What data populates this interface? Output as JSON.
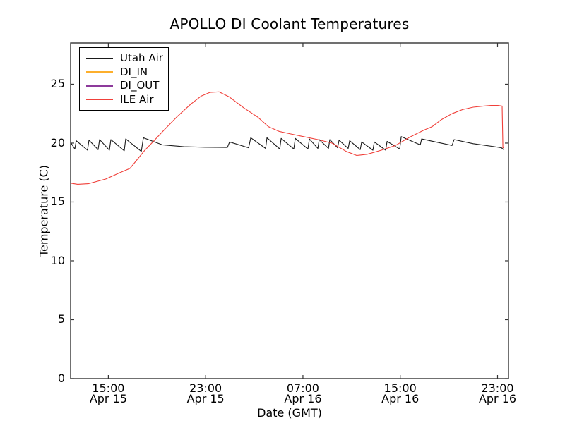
{
  "chart_data": {
    "type": "line",
    "title": "APOLLO DI Coolant Temperatures",
    "xlabel": "Date (GMT)",
    "ylabel": "Temperature (C)",
    "x_unit_hint": "hours after Apr 15 12:00 GMT",
    "xlim": [
      0,
      36
    ],
    "ylim": [
      0,
      28.5
    ],
    "grid": false,
    "yticks": [
      0,
      5,
      10,
      15,
      20,
      25
    ],
    "xticks": [
      {
        "t": 3.1,
        "time": "15:00",
        "date": "Apr 15"
      },
      {
        "t": 11.1,
        "time": "23:00",
        "date": "Apr 15"
      },
      {
        "t": 19.1,
        "time": "07:00",
        "date": "Apr 16"
      },
      {
        "t": 27.1,
        "time": "15:00",
        "date": "Apr 16"
      },
      {
        "t": 35.1,
        "time": "23:00",
        "date": "Apr 16"
      }
    ],
    "legend": {
      "position": "upper left",
      "entries": [
        {
          "label": "Utah Air",
          "color": "#1a1a1a"
        },
        {
          "label": "DI_IN",
          "color": "#fdaf2c"
        },
        {
          "label": "DI_OUT",
          "color": "#8d3a9b"
        },
        {
          "label": "ILE Air",
          "color": "#f0403a"
        }
      ]
    },
    "series": [
      {
        "name": "Utah Air",
        "color": "#1a1a1a",
        "points": [
          [
            0,
            20.05
          ],
          [
            0.35,
            19.5
          ],
          [
            0.46,
            20.2
          ],
          [
            1.39,
            19.4
          ],
          [
            1.51,
            20.25
          ],
          [
            2.26,
            19.45
          ],
          [
            2.38,
            20.3
          ],
          [
            3.19,
            19.4
          ],
          [
            3.31,
            20.3
          ],
          [
            4.41,
            19.35
          ],
          [
            4.53,
            20.35
          ],
          [
            5.81,
            19.3
          ],
          [
            5.98,
            20.45
          ],
          [
            7.55,
            19.85
          ],
          [
            9.29,
            19.7
          ],
          [
            11.03,
            19.65
          ],
          [
            12.89,
            19.63
          ],
          [
            13.07,
            20.1
          ],
          [
            14.63,
            19.6
          ],
          [
            14.81,
            20.45
          ],
          [
            16.03,
            19.55
          ],
          [
            16.14,
            20.45
          ],
          [
            17.19,
            19.5
          ],
          [
            17.31,
            20.4
          ],
          [
            18.35,
            19.5
          ],
          [
            18.47,
            20.4
          ],
          [
            19.51,
            19.5
          ],
          [
            19.63,
            20.35
          ],
          [
            20.33,
            19.55
          ],
          [
            20.44,
            20.3
          ],
          [
            21.2,
            19.55
          ],
          [
            21.31,
            20.3
          ],
          [
            21.95,
            19.6
          ],
          [
            22.07,
            20.25
          ],
          [
            22.82,
            19.55
          ],
          [
            22.94,
            20.2
          ],
          [
            23.81,
            19.45
          ],
          [
            23.93,
            20.1
          ],
          [
            24.85,
            19.4
          ],
          [
            24.97,
            20.1
          ],
          [
            25.9,
            19.4
          ],
          [
            26.02,
            20.15
          ],
          [
            27.06,
            19.5
          ],
          [
            27.18,
            20.55
          ],
          [
            28.75,
            19.85
          ],
          [
            28.86,
            20.35
          ],
          [
            31.36,
            19.8
          ],
          [
            31.53,
            20.3
          ],
          [
            33.1,
            19.95
          ],
          [
            34.84,
            19.7
          ],
          [
            35.42,
            19.6
          ],
          [
            35.6,
            19.45
          ]
        ]
      },
      {
        "name": "DI_IN",
        "color": "#fdaf2c",
        "points": []
      },
      {
        "name": "DI_OUT",
        "color": "#8d3a9b",
        "points": []
      },
      {
        "name": "ILE Air",
        "color": "#f0403a",
        "points": [
          [
            0,
            16.6
          ],
          [
            0.58,
            16.5
          ],
          [
            1.45,
            16.55
          ],
          [
            2.9,
            16.95
          ],
          [
            4.07,
            17.5
          ],
          [
            4.88,
            17.85
          ],
          [
            6.1,
            19.4
          ],
          [
            6.39,
            19.7
          ],
          [
            7.67,
            21.1
          ],
          [
            8.71,
            22.2
          ],
          [
            9.87,
            23.3
          ],
          [
            10.74,
            24.0
          ],
          [
            11.44,
            24.3
          ],
          [
            12.2,
            24.35
          ],
          [
            13.07,
            23.9
          ],
          [
            14.23,
            23.0
          ],
          [
            15.39,
            22.2
          ],
          [
            16.26,
            21.4
          ],
          [
            17.13,
            21.0
          ],
          [
            18.0,
            20.8
          ],
          [
            19.16,
            20.55
          ],
          [
            20.33,
            20.3
          ],
          [
            21.49,
            20.0
          ],
          [
            22.65,
            19.3
          ],
          [
            23.52,
            18.95
          ],
          [
            24.39,
            19.05
          ],
          [
            25.55,
            19.4
          ],
          [
            26.71,
            19.8
          ],
          [
            27.87,
            20.5
          ],
          [
            29.04,
            21.1
          ],
          [
            29.73,
            21.4
          ],
          [
            30.49,
            22.0
          ],
          [
            31.36,
            22.5
          ],
          [
            32.23,
            22.85
          ],
          [
            33.1,
            23.05
          ],
          [
            33.97,
            23.15
          ],
          [
            34.55,
            23.2
          ],
          [
            35.13,
            23.2
          ],
          [
            35.48,
            23.15
          ],
          [
            35.54,
            19.6
          ],
          [
            35.6,
            19.6
          ]
        ]
      }
    ]
  }
}
